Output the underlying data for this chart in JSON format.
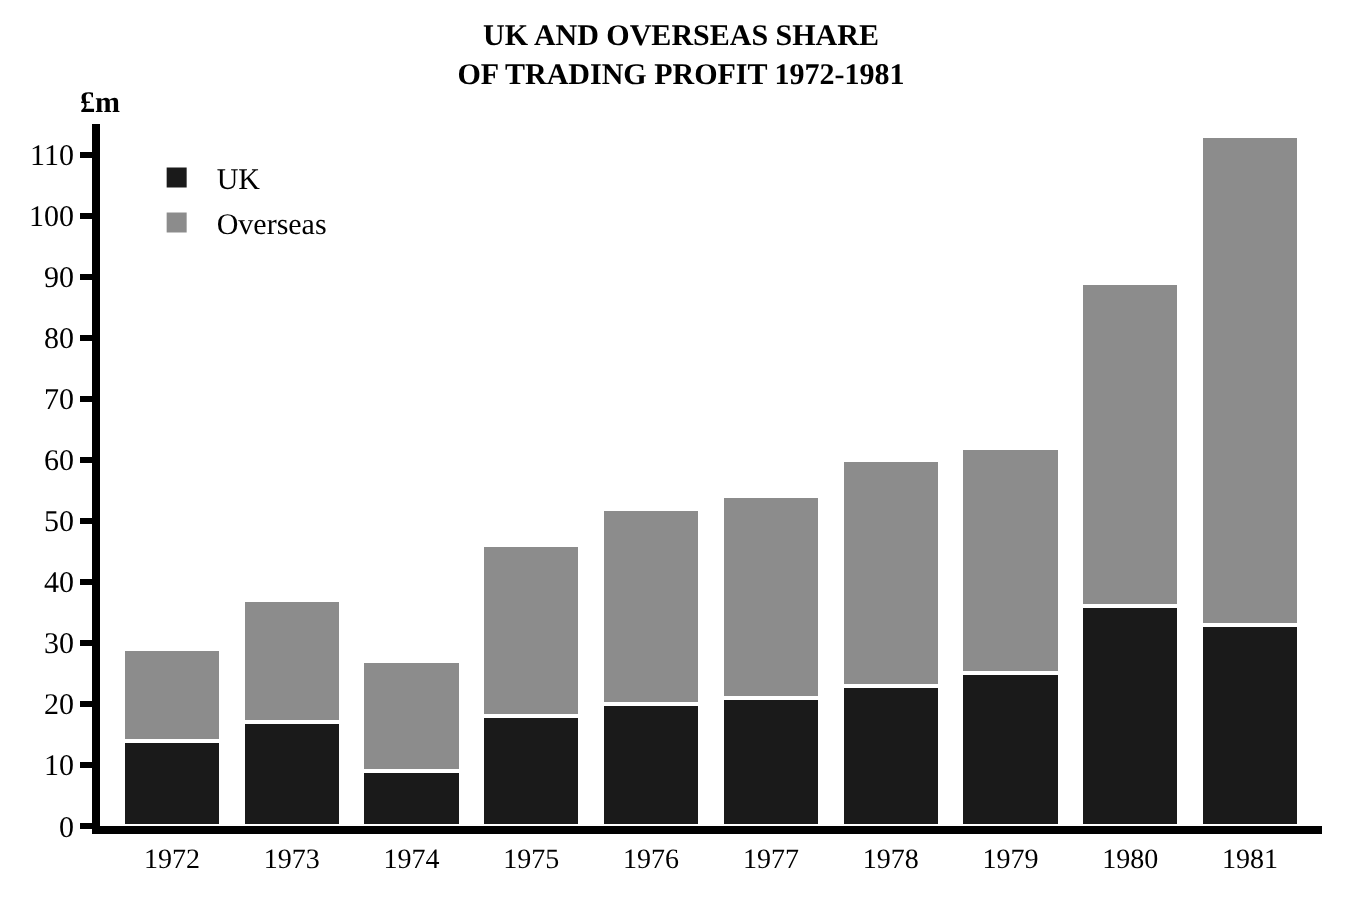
{
  "chart_data": {
    "type": "bar",
    "title": "UK AND OVERSEAS SHARE\nOF TRADING PROFIT 1972-1981",
    "ylabel": "£m",
    "categories": [
      "1972",
      "1973",
      "1974",
      "1975",
      "1976",
      "1977",
      "1978",
      "1979",
      "1980",
      "1981"
    ],
    "series": [
      {
        "name": "UK",
        "color": "#1a1a1a",
        "values": [
          14,
          17,
          9,
          18,
          20,
          21,
          23,
          25,
          36,
          33
        ]
      },
      {
        "name": "Overseas",
        "color": "#8c8c8c",
        "values": [
          15,
          20,
          18,
          28,
          32,
          33,
          37,
          37,
          53,
          80
        ]
      }
    ],
    "stacked": true,
    "ylim": [
      0,
      115
    ],
    "yticks": [
      0,
      10,
      20,
      30,
      40,
      50,
      60,
      70,
      80,
      90,
      100,
      110
    ],
    "legend": "top left"
  }
}
